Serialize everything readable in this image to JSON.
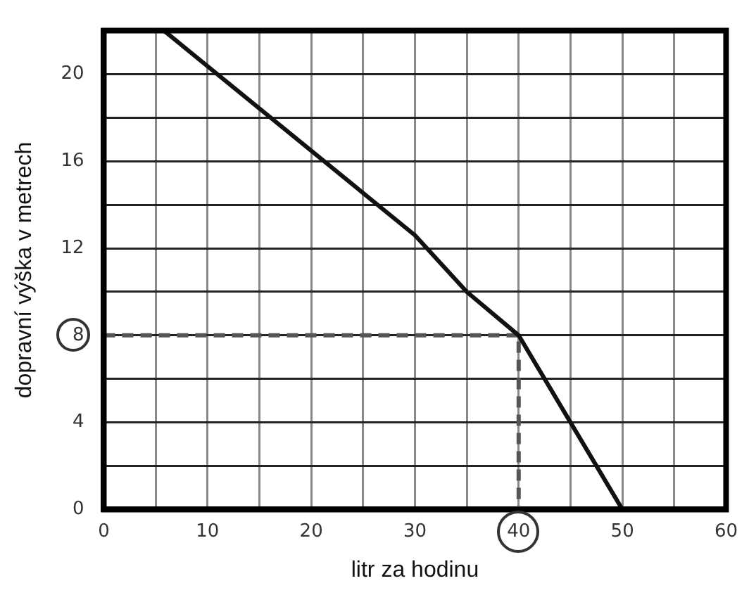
{
  "chart_data": {
    "type": "line",
    "xlabel": "litr za hodinu",
    "ylabel": "dopravní výška v metrech",
    "xlim": [
      0,
      60
    ],
    "ylim": [
      0,
      22
    ],
    "xticks": [
      0,
      {
        "value": 5,
        "label": null
      },
      10,
      {
        "value": 15,
        "label": null
      },
      20,
      {
        "value": 25,
        "label": null
      },
      30,
      {
        "value": 35,
        "label": null
      },
      40,
      {
        "value": 45,
        "label": null
      },
      50,
      {
        "value": 55,
        "label": null
      },
      60
    ],
    "yticks": [
      0,
      {
        "value": 2,
        "label": null
      },
      4,
      {
        "value": 6,
        "label": null
      },
      8,
      {
        "value": 10,
        "label": null
      },
      12,
      {
        "value": 14,
        "label": null
      },
      16,
      {
        "value": 18,
        "label": null
      },
      20
    ],
    "grid": true,
    "legend": false,
    "marker": "none",
    "series": [
      {
        "color": "#111111",
        "x": [
          5.8,
          30,
          35,
          40,
          45,
          50
        ],
        "values": [
          22,
          12.6,
          10,
          8,
          4,
          0
        ],
        "line_style": "solid"
      },
      {
        "color": "#555555",
        "x": [
          0,
          40,
          40
        ],
        "values": [
          8,
          8,
          0
        ],
        "line_style": "dashed"
      }
    ]
  }
}
